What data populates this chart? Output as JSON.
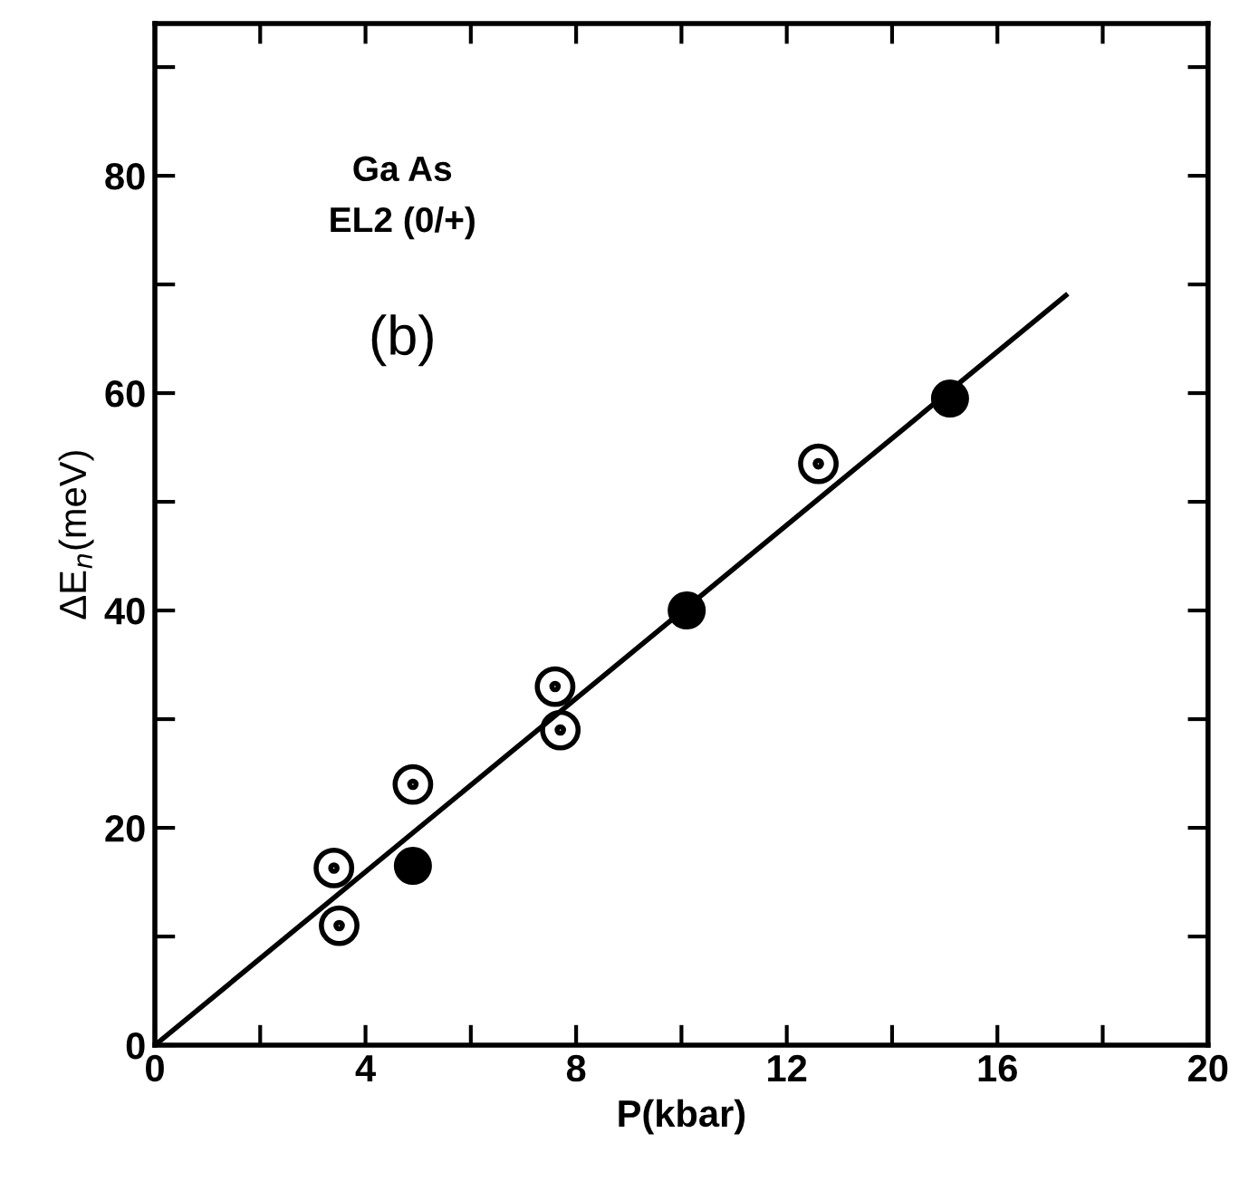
{
  "chart_data": {
    "type": "scatter",
    "xlabel": "P(kbar)",
    "ylabel": "ΔE$_{n}$(meV)",
    "annotations": [
      "Ga As",
      "EL2 (0/+)",
      "(b)"
    ],
    "xlim": [
      0,
      20
    ],
    "ylim": [
      0,
      94
    ],
    "xticks": [
      0,
      {
        "value": 2,
        "label": null
      },
      4,
      {
        "value": 6,
        "label": null
      },
      8,
      {
        "value": 10,
        "label": null
      },
      12,
      {
        "value": 14,
        "label": null
      },
      16,
      {
        "value": 18,
        "label": null
      },
      20
    ],
    "yticks": [
      0,
      {
        "value": 10,
        "label": null
      },
      20,
      {
        "value": 30,
        "label": null
      },
      40,
      {
        "value": 50,
        "label": null
      },
      60,
      {
        "value": 70,
        "label": null
      },
      80,
      {
        "value": 90,
        "label": null
      }
    ],
    "grid": false,
    "legend": false,
    "series": [
      {
        "marker": "dotted circle",
        "color": "#000000",
        "x": [
          3.4,
          3.5,
          4.9,
          7.6,
          7.7,
          12.6
        ],
        "values": [
          16.3,
          11,
          24,
          33,
          29,
          53.5
        ]
      },
      {
        "marker": "circle",
        "color": "#000000",
        "x": [
          4.9,
          10.1,
          15.1
        ],
        "values": [
          16.5,
          40,
          59.5
        ]
      },
      {
        "type": "line",
        "marker": "none",
        "line_style": "solid",
        "color": "#000000",
        "x": [
          0,
          17.3
        ],
        "values": [
          0,
          69
        ]
      }
    ]
  }
}
